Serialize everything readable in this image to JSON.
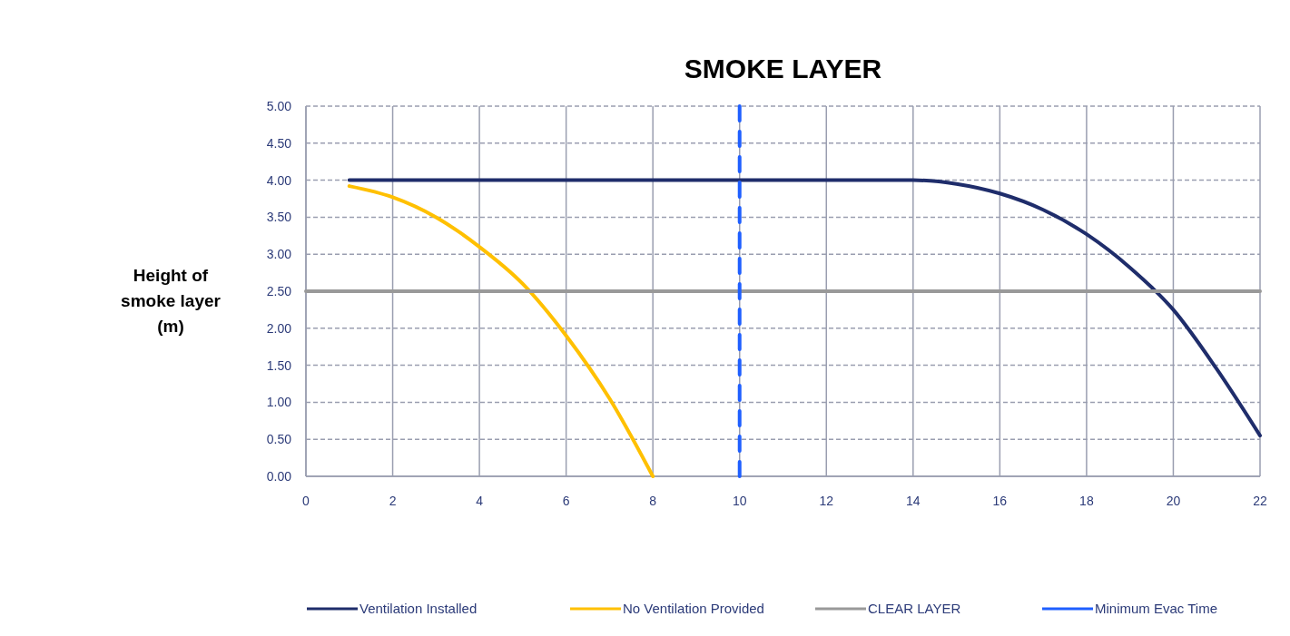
{
  "chart_data": {
    "type": "line",
    "title": "SMOKE LAYER",
    "ylabel": "Height of smoke layer (m)",
    "xlim": [
      0,
      22
    ],
    "xticks": [
      0,
      2,
      4,
      6,
      8,
      10,
      12,
      14,
      16,
      18,
      20,
      22
    ],
    "ylim": [
      0,
      5
    ],
    "yticks": [
      {
        "value": 0,
        "label": "0.00"
      },
      {
        "value": 0.5,
        "label": "0.50"
      },
      {
        "value": 1,
        "label": "1.00"
      },
      {
        "value": 1.5,
        "label": "1.50"
      },
      {
        "value": 2,
        "label": "2.00"
      },
      {
        "value": 2.5,
        "label": "2.50"
      },
      {
        "value": 3,
        "label": "3.00"
      },
      {
        "value": 3.5,
        "label": "3.50"
      },
      {
        "value": 4,
        "label": "4.00"
      },
      {
        "value": 4.5,
        "label": "4.50"
      },
      {
        "value": 5,
        "label": "5.00"
      }
    ],
    "grid": true,
    "legend": "bottom",
    "marker": "none",
    "series": [
      {
        "name": "Ventilation Installed",
        "color": "#1f2d6b",
        "x": [
          1,
          2,
          4,
          6,
          8,
          10,
          12,
          14,
          15,
          16,
          17,
          18,
          19,
          20,
          21,
          22
        ],
        "values": [
          4,
          4,
          4,
          4,
          4,
          4,
          4,
          4,
          3.95,
          3.82,
          3.6,
          3.27,
          2.82,
          2.25,
          1.45,
          0.55
        ]
      },
      {
        "name": "No Ventilation Provided",
        "color": "#ffc000",
        "x": [
          1,
          2,
          3,
          4,
          5,
          6,
          7,
          8
        ],
        "values": [
          3.92,
          3.77,
          3.5,
          3.1,
          2.6,
          1.9,
          1.05,
          0
        ]
      },
      {
        "name": "CLEAR LAYER",
        "color": "#999999",
        "x": [
          0,
          22
        ],
        "values": [
          2.5,
          2.5
        ]
      },
      {
        "name": "Minimum Evac Time",
        "color": "#1f5fff",
        "x": [
          10,
          10
        ],
        "values": [
          0,
          5
        ],
        "line_style": "dashed"
      }
    ]
  }
}
